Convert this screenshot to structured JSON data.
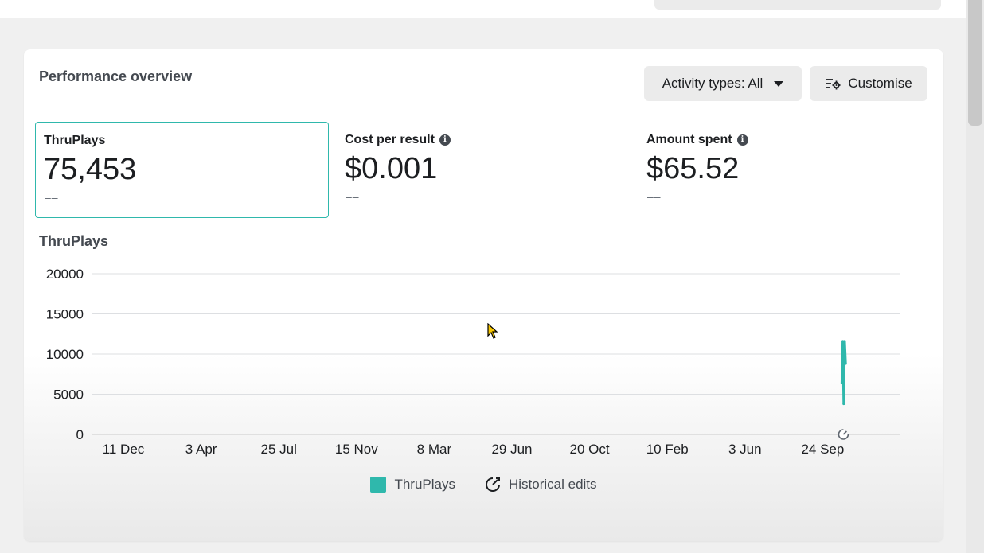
{
  "header": {
    "title": "Performance overview",
    "activity_button": "Activity types: All",
    "customise_button": "Customise"
  },
  "metrics": [
    {
      "label": "ThruPlays",
      "value": "75,453",
      "delta": "––",
      "has_info": false
    },
    {
      "label": "Cost per result",
      "value": "$0.001",
      "delta": "––",
      "has_info": true
    },
    {
      "label": "Amount spent",
      "value": "$65.52",
      "delta": "––",
      "has_info": true
    }
  ],
  "chart_title": "ThruPlays",
  "legend": {
    "series_label": "ThruPlays",
    "edits_label": "Historical edits"
  },
  "colors": {
    "accent": "#2fb8ac",
    "grid": "#dddfe2",
    "text": "#1c1e21"
  },
  "chart_data": {
    "type": "line",
    "title": "ThruPlays",
    "xlabel": "",
    "ylabel": "",
    "ylim": [
      0,
      20000
    ],
    "yticks": [
      0,
      5000,
      10000,
      15000,
      20000
    ],
    "xticks": [
      "11 Dec",
      "3 Apr",
      "25 Jul",
      "15 Nov",
      "8 Mar",
      "29 Jun",
      "20 Oct",
      "10 Feb",
      "3 Jun",
      "24 Sep"
    ],
    "grid": true,
    "legend_position": "bottom-center",
    "series": [
      {
        "name": "ThruPlays",
        "color": "#2fb8ac",
        "points": [
          {
            "x": "24 Sep",
            "y": 6400
          },
          {
            "x": "24 Sep",
            "y": 11600
          },
          {
            "x": "24 Sep",
            "y": 3800
          },
          {
            "x": "24 Sep",
            "y": 11600
          },
          {
            "x": "24 Sep",
            "y": 8800
          }
        ]
      }
    ],
    "annotations": [
      {
        "type": "historical-edit",
        "x": "24 Sep"
      }
    ]
  }
}
